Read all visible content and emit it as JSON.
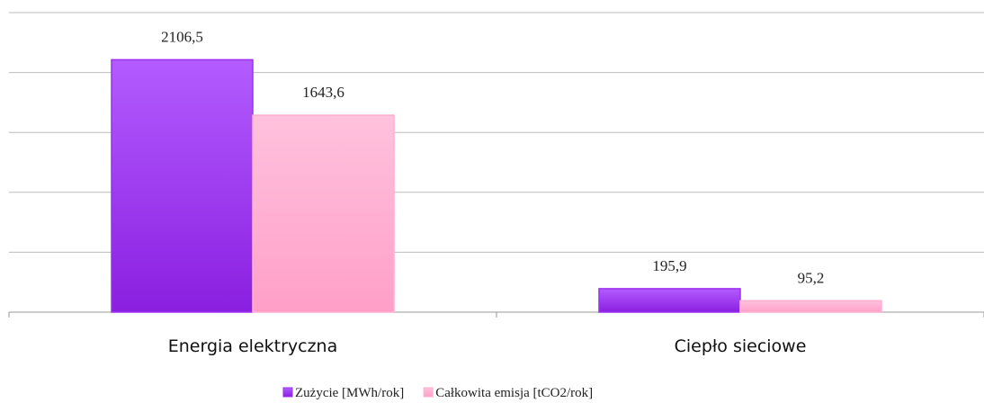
{
  "chart_data": {
    "type": "bar",
    "categories": [
      "Energia elektryczna",
      "Ciepło sieciowe"
    ],
    "series": [
      {
        "name": "Zużycie [MWh/rok]",
        "color": "#9b30f0",
        "values": [
          2106.5,
          195.9
        ],
        "value_labels": [
          "2106,5",
          "195,9"
        ]
      },
      {
        "name": "Całkowita emisja [tCO2/rok]",
        "color": "#ffaed0",
        "values": [
          1643.6,
          95.2
        ],
        "value_labels": [
          "1643,6",
          "95,2"
        ]
      }
    ],
    "ylim": [
      0,
      2500
    ],
    "yticks": [
      0,
      500,
      1000,
      1500,
      2000,
      2500
    ],
    "grid": true
  }
}
